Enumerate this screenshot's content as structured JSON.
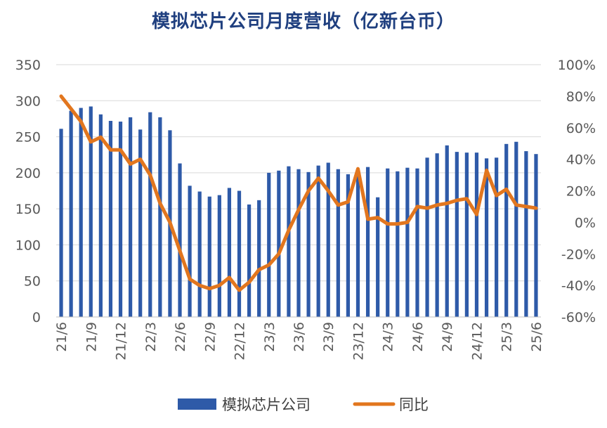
{
  "chart_data": {
    "type": "bar",
    "title": "模拟芯片公司月度营收（亿新台币）",
    "x": [
      "21/6",
      "21/7",
      "21/8",
      "21/9",
      "21/10",
      "21/11",
      "21/12",
      "22/1",
      "22/2",
      "22/3",
      "22/4",
      "22/5",
      "22/6",
      "22/7",
      "22/8",
      "22/9",
      "22/10",
      "22/11",
      "22/12",
      "23/1",
      "23/2",
      "23/3",
      "23/4",
      "23/5",
      "23/6",
      "23/7",
      "23/8",
      "23/9",
      "23/10",
      "23/11",
      "23/12",
      "24/1",
      "24/2",
      "24/3",
      "24/4",
      "24/5",
      "24/6",
      "24/7",
      "24/8",
      "24/9",
      "24/10",
      "24/11",
      "24/12",
      "25/1",
      "25/2",
      "25/3",
      "25/4",
      "25/5",
      "25/6"
    ],
    "x_tick_labels": [
      "21/6",
      "21/9",
      "21/12",
      "22/3",
      "22/6",
      "22/9",
      "22/12",
      "23/3",
      "23/6",
      "23/9",
      "23/12",
      "24/3",
      "24/6",
      "24/9",
      "24/12",
      "25/3",
      "25/6"
    ],
    "series": [
      {
        "name": "模拟芯片公司",
        "type": "bar",
        "axis": "left",
        "color": "#2e5aa8",
        "values": [
          261,
          286,
          290,
          292,
          281,
          272,
          271,
          277,
          260,
          284,
          277,
          259,
          213,
          182,
          174,
          167,
          169,
          179,
          175,
          156,
          162,
          200,
          203,
          209,
          205,
          201,
          210,
          214,
          205,
          198,
          198,
          208,
          166,
          206,
          202,
          207,
          206,
          221,
          227,
          238,
          229,
          228,
          228,
          220,
          221,
          240,
          243,
          230,
          226
        ]
      },
      {
        "name": "同比",
        "type": "line",
        "axis": "right",
        "color": "#e2761e",
        "values": [
          80,
          72,
          64,
          51,
          54,
          46,
          46,
          37,
          40,
          30,
          12,
          0,
          -18,
          -36,
          -40,
          -42,
          -40,
          -35,
          -43,
          -38,
          -30,
          -27,
          -20,
          -5,
          8,
          20,
          28,
          20,
          11,
          13,
          34,
          2,
          3,
          -1,
          -1,
          0,
          10,
          9,
          11,
          12,
          14,
          15,
          5,
          33,
          17,
          21,
          11,
          10,
          9
        ]
      }
    ],
    "left_axis": {
      "min": 0,
      "max": 350,
      "step": 50,
      "tick_labels": [
        "0",
        "50",
        "100",
        "150",
        "200",
        "250",
        "300",
        "350"
      ]
    },
    "right_axis": {
      "min": -60,
      "max": 100,
      "step": 20,
      "tick_labels": [
        "-60%",
        "-40%",
        "-20%",
        "0%",
        "20%",
        "40%",
        "60%",
        "80%",
        "100%"
      ]
    },
    "grid": "horizontal",
    "legend_position": "bottom",
    "legend": [
      {
        "label": "模拟芯片公司",
        "marker": "bar",
        "color": "#2e5aa8"
      },
      {
        "label": "同比",
        "marker": "line",
        "color": "#e2761e"
      }
    ]
  }
}
